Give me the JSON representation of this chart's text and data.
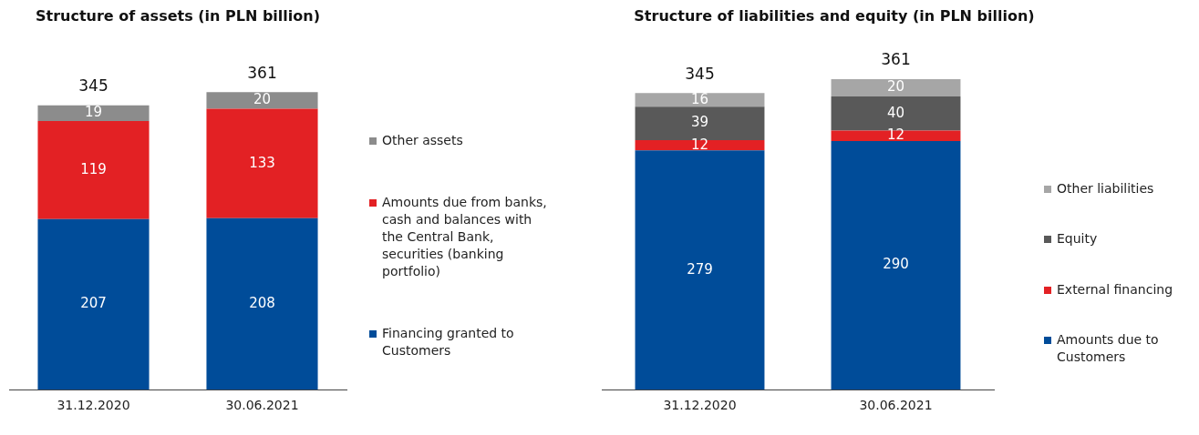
{
  "chart_data": [
    {
      "type": "bar",
      "title": "Structure of assets (in PLN billion)",
      "categories": [
        "31.12.2020",
        "30.06.2021"
      ],
      "stacked": true,
      "data_labels": true,
      "legend": "right",
      "grid": false,
      "totals": [
        "345",
        "361"
      ],
      "series": [
        {
          "name": "Financing granted to Customers",
          "color": "#004c99",
          "values": [
            207,
            208
          ]
        },
        {
          "name": "Amounts due from banks, cash and balances with the Central Bank, securities (banking portfolio)",
          "color": "#e32124",
          "values": [
            119,
            133
          ]
        },
        {
          "name": "Other assets",
          "color": "#8c8c8c",
          "values": [
            19,
            20
          ]
        }
      ]
    },
    {
      "type": "bar",
      "title": "Structure of liabilities and equity (in PLN billion)",
      "categories": [
        "31.12.2020",
        "30.06.2021"
      ],
      "stacked": true,
      "data_labels": true,
      "legend": "right",
      "grid": false,
      "totals": [
        "345",
        "361"
      ],
      "series": [
        {
          "name": "Amounts due to Customers",
          "color": "#004c99",
          "values": [
            279,
            290
          ]
        },
        {
          "name": "External financing",
          "color": "#e32124",
          "values": [
            12,
            12
          ]
        },
        {
          "name": "Equity",
          "color": "#595959",
          "values": [
            39,
            40
          ]
        },
        {
          "name": "Other liabilities",
          "color": "#a6a6a6",
          "values": [
            16,
            20
          ]
        }
      ]
    }
  ]
}
